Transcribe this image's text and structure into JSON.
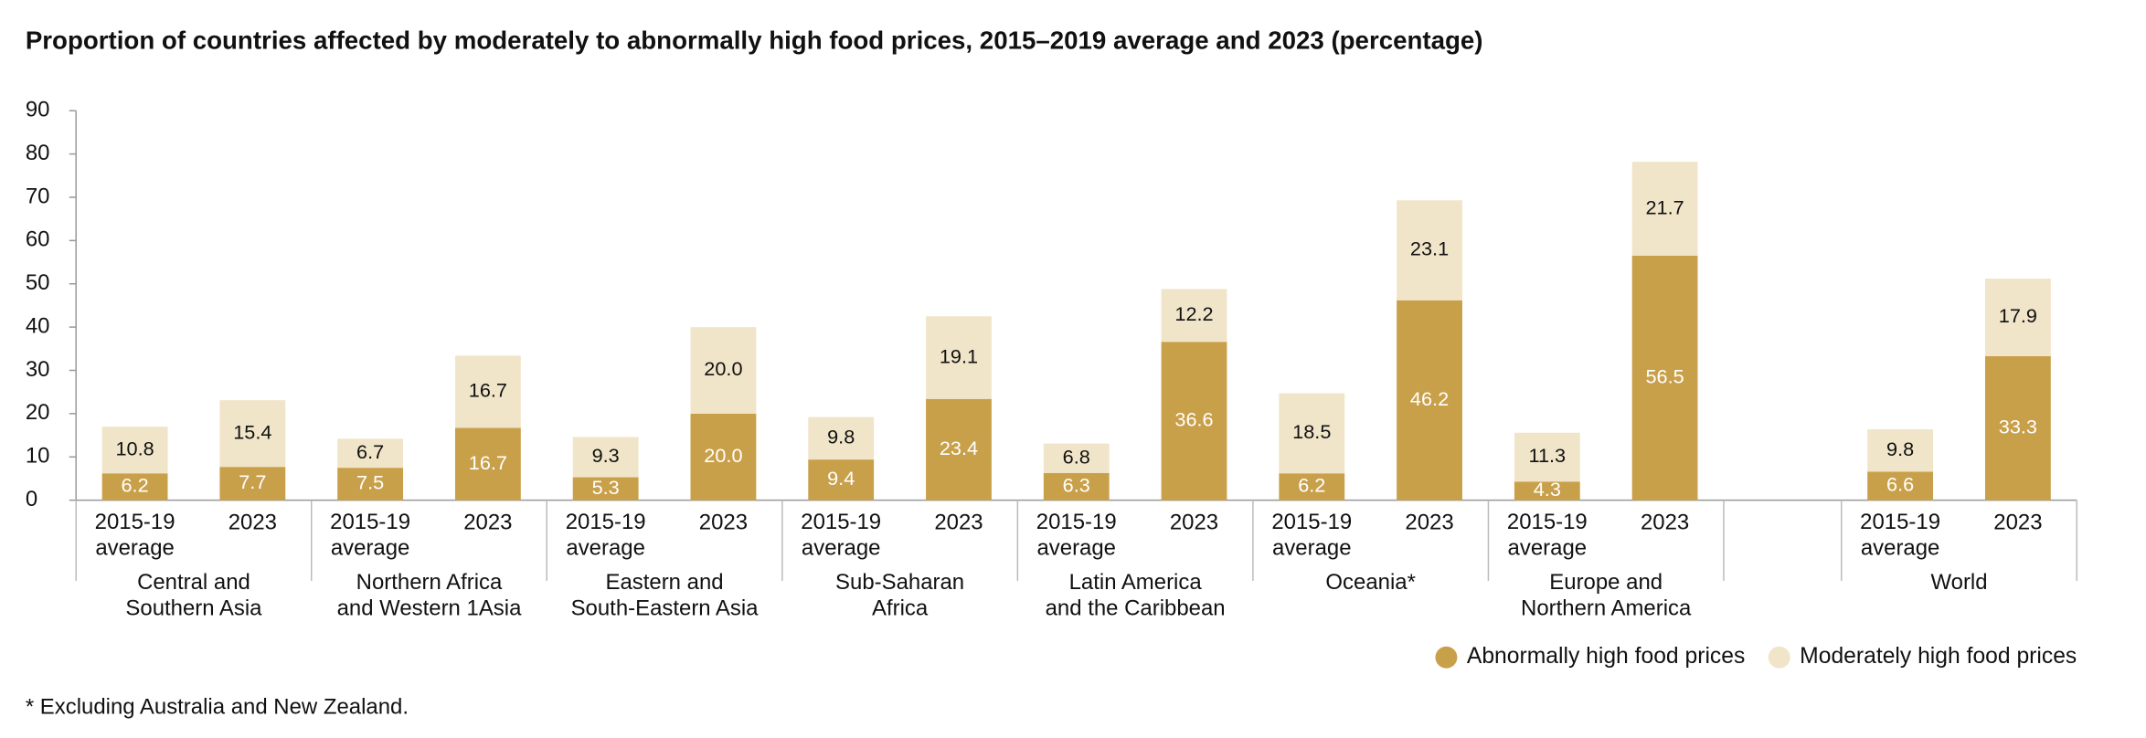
{
  "chart_data": {
    "type": "stacked_bar",
    "title": "Proportion of countries affected by moderately to abnormally high food prices, 2015–2019 average and 2023 (percentage)",
    "footnote": "* Excluding Australia and New Zealand.",
    "groups": [
      "Central and\nSouthern Asia",
      "Northern Africa\nand Western 1Asia",
      "Eastern and\nSouth-Eastern Asia",
      "Sub-Saharan\nAfrica",
      "Latin America\nand the Caribbean",
      "Oceania*",
      "Europe and\nNorthern America",
      "World"
    ],
    "categories": [
      "2015-19\naverage",
      "2023",
      "2015-19\naverage",
      "2023",
      "2015-19\naverage",
      "2023",
      "2015-19\naverage",
      "2023",
      "2015-19\naverage",
      "2023",
      "2015-19\naverage",
      "2023",
      "2015-19\naverage",
      "2023",
      "2015-19\naverage",
      "2023"
    ],
    "series": [
      {
        "name": "Abnormally high food prices",
        "color": "#c9a04a",
        "label_color": "#ffffff",
        "values": [
          6.2,
          7.7,
          7.5,
          16.7,
          5.3,
          20.0,
          9.4,
          23.4,
          6.3,
          36.6,
          6.2,
          46.2,
          4.3,
          56.5,
          6.6,
          33.3
        ],
        "value_labels": [
          "6.2",
          "7.7",
          "7.5",
          "16.7",
          "5.3",
          "20.0",
          "9.4",
          "23.4",
          "6.3",
          "36.6",
          "6.2",
          "46.2",
          "4.3",
          "56.5",
          "6.6",
          "33.3"
        ]
      },
      {
        "name": "Moderately high food prices",
        "color": "#f1e5c9",
        "label_color": "#111111",
        "values": [
          10.8,
          15.4,
          6.7,
          16.7,
          9.3,
          20.0,
          9.8,
          19.1,
          6.8,
          12.2,
          18.5,
          23.1,
          11.3,
          21.7,
          9.8,
          17.9
        ],
        "value_labels": [
          "10.8",
          "15.4",
          "6.7",
          "16.7",
          "9.3",
          "20.0",
          "9.8",
          "19.1",
          "6.8",
          "12.2",
          "18.5",
          "23.1",
          "11.3",
          "21.7",
          "9.8",
          "17.9"
        ]
      }
    ],
    "ylim": [
      0,
      90
    ],
    "yticks": [
      0,
      10,
      20,
      30,
      40,
      50,
      60,
      70,
      80,
      90
    ],
    "grid": false,
    "legend": "bottom-right"
  }
}
